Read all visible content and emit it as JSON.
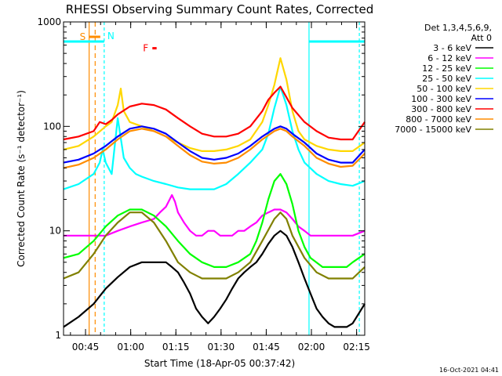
{
  "chart_data": {
    "type": "line",
    "title": "RHESSI Observing Summary Count Rates, Corrected",
    "xlabel": "Start Time (18-Apr-05 00:37:42)",
    "ylabel": "Corrected Count Rate (s⁻¹ detector⁻¹)",
    "y_scale": "log",
    "ylim": [
      1,
      1000
    ],
    "xlim": [
      0,
      100
    ],
    "y_ticks": [
      {
        "value": 1,
        "label": "1"
      },
      {
        "value": 10,
        "label": "10"
      },
      {
        "value": 100,
        "label": "100"
      },
      {
        "value": 1000,
        "label": "1000"
      }
    ],
    "x_ticks": [
      {
        "value": 7.3,
        "label": "00:45"
      },
      {
        "value": 22.3,
        "label": "01:00"
      },
      {
        "value": 37.3,
        "label": "01:15"
      },
      {
        "value": 52.3,
        "label": "01:30"
      },
      {
        "value": 67.3,
        "label": "01:45"
      },
      {
        "value": 82.3,
        "label": "02:00"
      },
      {
        "value": 97.3,
        "label": "02:15"
      }
    ],
    "legend_header": [
      "Det 1,3,4,5,6,9,",
      "Att 0"
    ],
    "series": [
      {
        "name": "3 - 6 keV",
        "color": "#000000",
        "x": [
          0,
          5,
          10,
          14,
          18,
          22,
          26,
          30,
          34,
          36,
          38,
          40,
          42,
          44,
          46,
          48,
          50,
          52,
          54,
          56,
          58,
          60,
          62,
          64,
          66,
          68,
          70,
          72,
          74,
          76,
          78,
          80,
          82,
          84,
          86,
          88,
          90,
          92,
          94,
          96,
          100
        ],
        "y": [
          1.2,
          1.5,
          2,
          2.8,
          3.6,
          4.5,
          5,
          5,
          5,
          4.5,
          4,
          3.2,
          2.5,
          1.8,
          1.5,
          1.3,
          1.5,
          1.8,
          2.2,
          2.8,
          3.5,
          4,
          4.5,
          5,
          6,
          7.5,
          9,
          10,
          9,
          7,
          5,
          3.5,
          2.5,
          1.8,
          1.5,
          1.3,
          1.2,
          1.2,
          1.2,
          1.3,
          2
        ]
      },
      {
        "name": "6 - 12 keV",
        "color": "#ff00ff",
        "x": [
          0,
          5,
          10,
          14,
          18,
          22,
          26,
          30,
          32,
          34,
          36,
          37,
          38,
          40,
          42,
          44,
          46,
          48,
          50,
          52,
          54,
          56,
          58,
          60,
          62,
          64,
          66,
          68,
          70,
          72,
          74,
          76,
          78,
          80,
          82,
          84,
          86,
          88,
          90,
          92,
          94,
          96,
          100
        ],
        "y": [
          9,
          9,
          9,
          9,
          10,
          11,
          12,
          13,
          15,
          17,
          22,
          19,
          15,
          12,
          10,
          9,
          9,
          10,
          10,
          9,
          9,
          9,
          10,
          10,
          11,
          12,
          14,
          15,
          16,
          16,
          15,
          13,
          11,
          10,
          9,
          9,
          9,
          9,
          9,
          9,
          9,
          9,
          10
        ]
      },
      {
        "name": "12 - 25 keV",
        "color": "#00ff00",
        "x": [
          0,
          5,
          10,
          14,
          18,
          22,
          26,
          30,
          34,
          38,
          42,
          46,
          50,
          54,
          58,
          62,
          64,
          66,
          68,
          70,
          72,
          74,
          76,
          78,
          80,
          82,
          86,
          90,
          94,
          96,
          100
        ],
        "y": [
          5.5,
          6,
          8,
          11,
          14,
          16,
          16,
          14,
          11,
          8,
          6,
          5,
          4.5,
          4.5,
          5,
          6,
          8,
          12,
          20,
          30,
          35,
          28,
          18,
          10,
          7,
          5.5,
          4.5,
          4.5,
          4.5,
          5,
          6
        ]
      },
      {
        "name": "25 - 50 keV",
        "color": "#00ffff",
        "x": [
          0,
          5,
          10,
          12,
          13,
          14,
          16,
          18,
          20,
          22,
          24,
          26,
          30,
          34,
          38,
          42,
          46,
          50,
          54,
          58,
          62,
          66,
          68,
          70,
          72,
          74,
          76,
          78,
          80,
          84,
          88,
          92,
          96,
          100
        ],
        "y": [
          25,
          28,
          35,
          45,
          60,
          45,
          35,
          120,
          50,
          40,
          35,
          33,
          30,
          28,
          26,
          25,
          25,
          25,
          28,
          35,
          45,
          60,
          85,
          150,
          240,
          160,
          90,
          60,
          45,
          35,
          30,
          28,
          27,
          30
        ]
      },
      {
        "name": "50 - 100 keV",
        "color": "#ffd700",
        "x": [
          0,
          5,
          10,
          14,
          16,
          18,
          19,
          20,
          22,
          26,
          30,
          34,
          38,
          42,
          46,
          50,
          54,
          58,
          62,
          66,
          68,
          70,
          72,
          74,
          76,
          78,
          80,
          84,
          88,
          92,
          96,
          100
        ],
        "y": [
          60,
          65,
          80,
          100,
          110,
          160,
          230,
          140,
          110,
          100,
          90,
          80,
          70,
          62,
          58,
          58,
          60,
          65,
          75,
          110,
          160,
          250,
          450,
          280,
          140,
          90,
          75,
          65,
          60,
          58,
          58,
          70
        ]
      },
      {
        "name": "100 - 300 keV",
        "color": "#0000ff",
        "x": [
          0,
          5,
          10,
          14,
          18,
          22,
          26,
          30,
          34,
          38,
          42,
          46,
          50,
          54,
          58,
          62,
          66,
          70,
          72,
          74,
          76,
          80,
          84,
          88,
          92,
          96,
          100
        ],
        "y": [
          45,
          48,
          55,
          65,
          80,
          95,
          100,
          95,
          85,
          70,
          58,
          50,
          48,
          50,
          55,
          65,
          80,
          95,
          100,
          95,
          85,
          70,
          55,
          48,
          45,
          45,
          60
        ]
      },
      {
        "name": "300 - 800 keV",
        "color": "#ff0000",
        "x": [
          0,
          5,
          10,
          12,
          14,
          16,
          18,
          22,
          26,
          30,
          34,
          38,
          42,
          46,
          50,
          54,
          58,
          62,
          66,
          68,
          70,
          72,
          74,
          76,
          80,
          84,
          88,
          92,
          96,
          100
        ],
        "y": [
          75,
          80,
          90,
          110,
          105,
          115,
          130,
          155,
          165,
          160,
          145,
          120,
          100,
          85,
          80,
          80,
          85,
          100,
          140,
          180,
          210,
          240,
          190,
          150,
          110,
          90,
          78,
          75,
          75,
          110
        ]
      },
      {
        "name": "800 - 7000 keV",
        "color": "#ff8c00",
        "x": [
          0,
          5,
          10,
          14,
          18,
          22,
          26,
          30,
          34,
          38,
          42,
          46,
          50,
          54,
          58,
          62,
          66,
          70,
          72,
          74,
          76,
          80,
          84,
          88,
          92,
          96,
          100
        ],
        "y": [
          40,
          43,
          50,
          60,
          75,
          90,
          95,
          90,
          80,
          65,
          53,
          46,
          44,
          45,
          50,
          60,
          75,
          90,
          95,
          90,
          80,
          65,
          50,
          44,
          41,
          42,
          55
        ]
      },
      {
        "name": "7000 - 15000 keV",
        "color": "#808000",
        "x": [
          0,
          5,
          10,
          14,
          18,
          22,
          26,
          30,
          34,
          38,
          42,
          46,
          50,
          54,
          58,
          62,
          66,
          70,
          72,
          74,
          76,
          80,
          84,
          88,
          92,
          96,
          100
        ],
        "y": [
          3.5,
          4,
          6,
          9,
          12,
          15,
          15,
          12,
          8,
          5,
          4,
          3.5,
          3.5,
          3.5,
          4,
          5,
          8,
          13,
          15,
          13,
          9,
          5.5,
          4,
          3.5,
          3.5,
          3.5,
          4.5
        ]
      }
    ],
    "event_bars": [
      {
        "label": "",
        "x0": 0,
        "x1": 13.5,
        "y": 650,
        "color": "#00ffff"
      },
      {
        "label": "S",
        "x0": 8.5,
        "x1": 12.2,
        "y": 720,
        "color": "#ff8c00"
      },
      {
        "label": "F",
        "x0": 29.5,
        "x1": 30.9,
        "y": 560,
        "color": "#ff0000"
      },
      {
        "label": "",
        "x0": 81.5,
        "x1": 100,
        "y": 650,
        "color": "#00ffff"
      }
    ],
    "markers": [
      {
        "label": "N",
        "x": 13.5,
        "color": "#00ffff"
      },
      {
        "label": "",
        "x": 81.5,
        "color": "#00ffff"
      },
      {
        "label": "",
        "x": 98.2,
        "color": "#00ffff"
      },
      {
        "label": "",
        "x": 8.5,
        "color": "#ff8c00"
      },
      {
        "label": "",
        "x": 10.5,
        "color": "#ff8c00"
      }
    ],
    "grid": false,
    "legend_position": "right"
  },
  "footer_timestamp": "16-Oct-2021 04:41"
}
